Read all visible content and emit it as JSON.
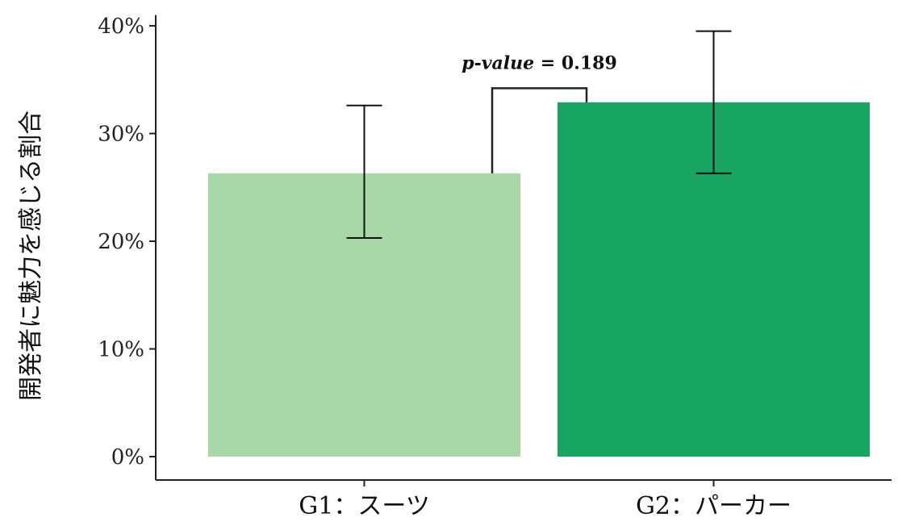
{
  "chart_data": {
    "type": "bar",
    "categories": [
      "G1：スーツ",
      "G2：パーカー"
    ],
    "values": [
      26.3,
      32.9
    ],
    "error_bars": [
      {
        "low": 20.3,
        "high": 32.6
      },
      {
        "low": 26.3,
        "high": 39.5
      }
    ],
    "colors": [
      "#a8d8a8",
      "#18a461"
    ],
    "ylabel": "開発者に魅力を感じる割合",
    "ylim": [
      0,
      41
    ],
    "yticks": [
      0,
      10,
      20,
      30,
      40
    ],
    "ytick_labels": [
      "0%",
      "10%",
      "20%",
      "30%",
      "40%"
    ],
    "grid": false,
    "annotation": {
      "label_italic": "p-value",
      "label_rest": " = 0.189",
      "bracket_top": 34.2
    }
  }
}
